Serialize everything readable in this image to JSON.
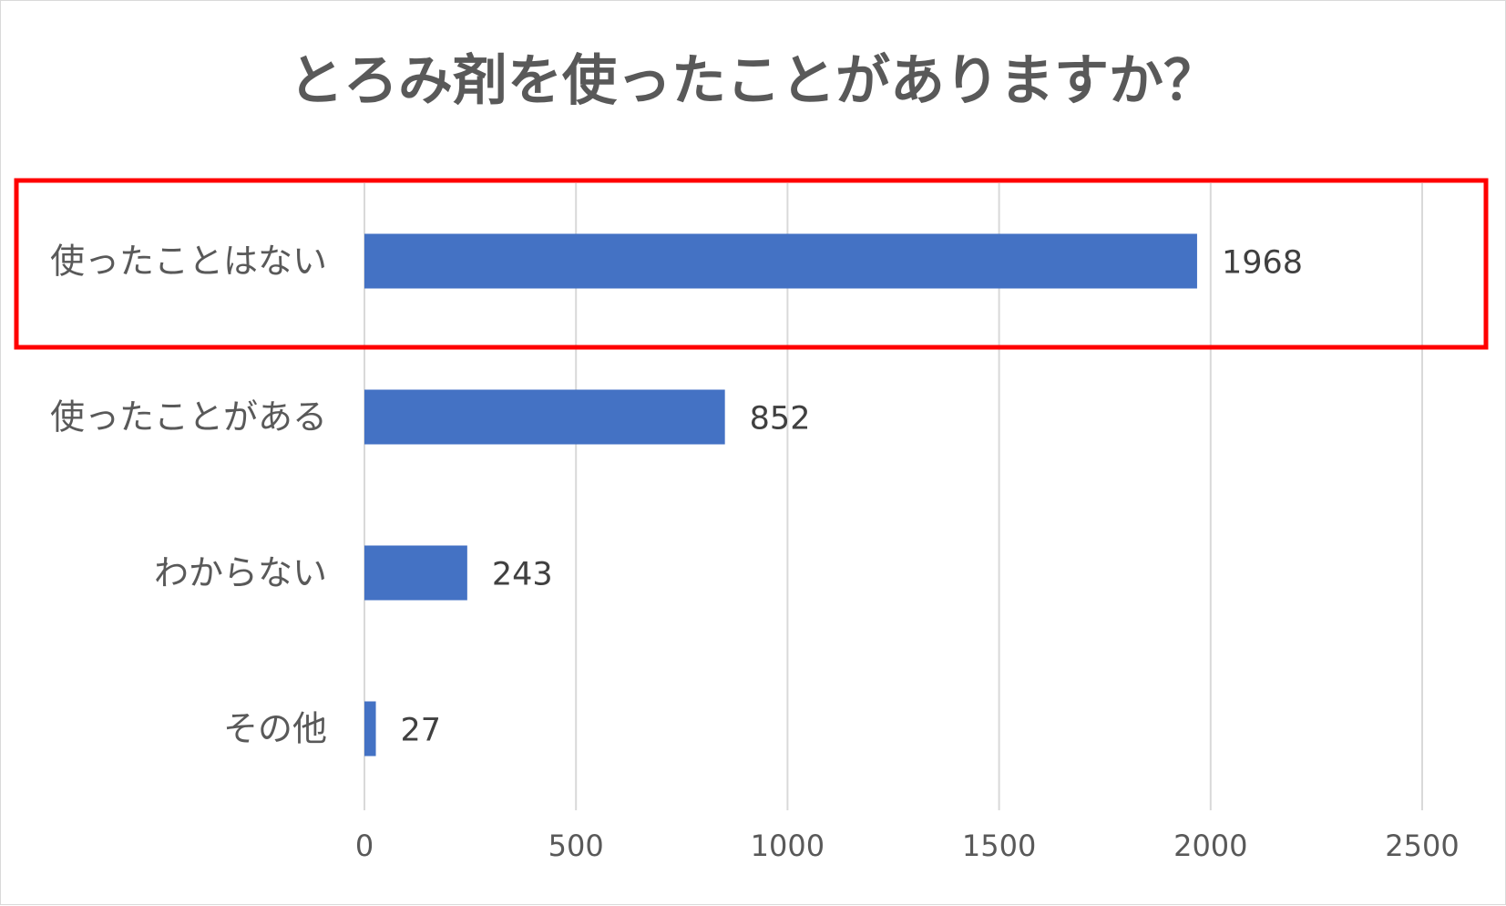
{
  "chart_data": {
    "type": "bar",
    "orientation": "horizontal",
    "title": "とろみ剤を使ったことがありますか？",
    "categories": [
      "使ったことはない",
      "使ったことがある",
      "わからない",
      "その他"
    ],
    "values": [
      1968,
      852,
      243,
      27
    ],
    "data_labels": [
      "1968",
      "852",
      "243",
      "27"
    ],
    "xlim": [
      0,
      2500
    ],
    "x_ticks": [
      "0",
      "500",
      "1000",
      "1500",
      "2000",
      "2500"
    ],
    "grid": "vertical",
    "legend": "none",
    "bar_color": "#4472C4",
    "highlight": {
      "category_index": 0,
      "color": "#FF0000"
    }
  }
}
